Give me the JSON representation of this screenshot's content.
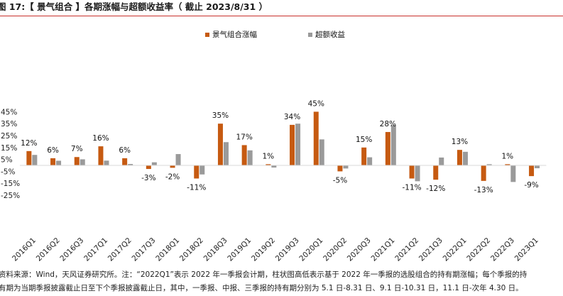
{
  "figure": {
    "title": "图 17:【 景气组合 】各期涨幅与超额收益率（ 截止 2023/8/31 ）",
    "footnote_line1": "资料来源：Wind，天风证券研究所。注：“2022Q1”表示 2022 年一季报会计期，柱状图高低表示基于 2022 年一季报的选股组合的持有期涨幅；每个季报的持",
    "footnote_line2": "有期为当期季报披露截止日至下个季报披露截止日，其中，一季报、中报、三季报的持有期分别为 5.1 日-8.31 日、9.1 日-10.31 日，11.1 日-次年 4.30 日。"
  },
  "chart_data": {
    "type": "bar",
    "title": "景气组合 各期涨幅与超额收益率（截止 2023/8/31）",
    "categories": [
      "2016Q1",
      "2016Q2",
      "2016Q3",
      "2017Q1",
      "2017Q2",
      "2017Q3",
      "2018Q1",
      "2018Q2",
      "2018Q3",
      "2019Q1",
      "2019Q2",
      "2019Q3",
      "2020Q1",
      "2020Q2",
      "2020Q3",
      "2021Q1",
      "2021Q2",
      "2021Q3",
      "2022Q1",
      "2022Q2",
      "2022Q3",
      "2023Q1"
    ],
    "series": [
      {
        "name": "景气组合涨幅",
        "color": "#c65a11",
        "values": [
          12,
          6,
          7,
          16,
          6,
          -3,
          -2,
          -11,
          35,
          17,
          1,
          34,
          45,
          -5,
          15,
          28,
          -11,
          -12,
          13,
          -13,
          1,
          -9
        ],
        "labels": [
          "12%",
          "6%",
          "7%",
          "16%",
          "6%",
          "-3%",
          "-2%",
          "-11%",
          "35%",
          "17%",
          "1%",
          "34%",
          "45%",
          "-5%",
          "15%",
          "28%",
          "-11%",
          "-12%",
          "13%",
          "-13%",
          "1%",
          "-9%"
        ]
      },
      {
        "name": "超额收益",
        "color": "#9a9a9a",
        "values": [
          8.8,
          3.9,
          5.1,
          4.0,
          1.2,
          2.6,
          9.5,
          -7.6,
          19.5,
          12.6,
          -1.8,
          35.0,
          21.8,
          -2.6,
          6.8,
          33.7,
          -13.3,
          6.6,
          11.4,
          1.0,
          -13.9,
          -2.4
        ]
      }
    ],
    "y_ticks": [
      "45%",
      "35%",
      "25%",
      "15%",
      "5%",
      "-5%",
      "-15%",
      "-25%"
    ],
    "y_tick_values": [
      45,
      35,
      25,
      15,
      5,
      -5,
      -15,
      -25
    ],
    "ylim": [
      -25,
      45
    ],
    "legend_position": "top-center",
    "grid": false
  }
}
